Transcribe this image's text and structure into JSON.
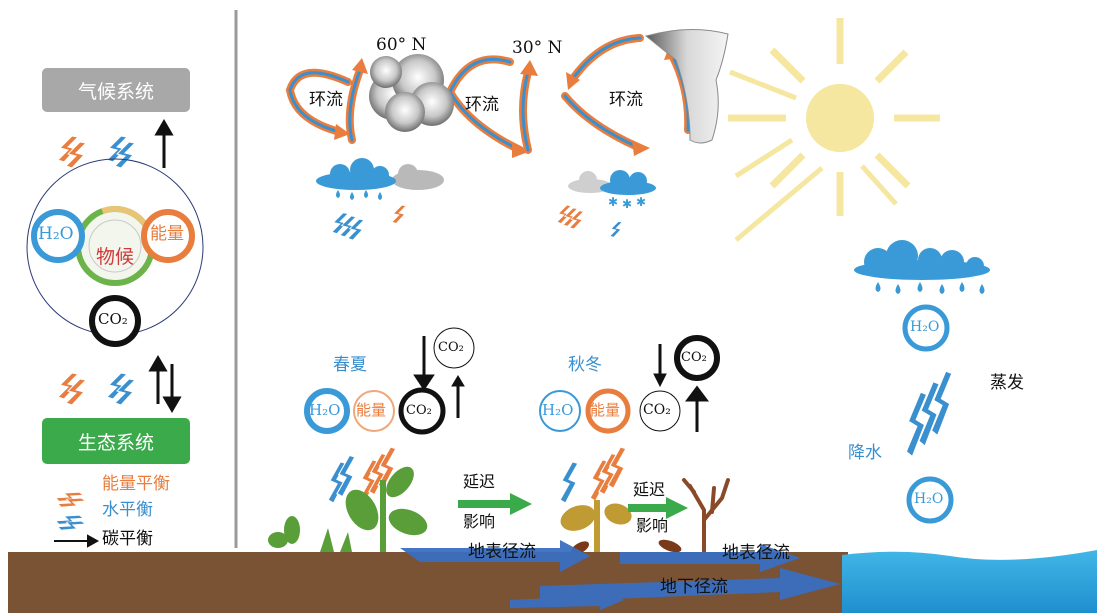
{
  "legend_panel": {
    "climate_system": "气候系统",
    "ecosystem": "生态系统",
    "center_label": "物候",
    "h2o": "H₂O",
    "energy": "能量",
    "co2": "CO₂",
    "legend_items": [
      {
        "label": "能量平衡",
        "color": "#e87d3e"
      },
      {
        "label": "水平衡",
        "color": "#3a8fcf"
      },
      {
        "label": "碳平衡",
        "color": "#111111"
      }
    ]
  },
  "atmosphere": {
    "lat_60": "60° N",
    "lat_30": "30° N",
    "circulation_labels": [
      "环流",
      "环流",
      "环流"
    ]
  },
  "seasons": {
    "spring_summer": "春夏",
    "autumn_winter": "秋冬",
    "h2o": "H₂O",
    "energy": "能量",
    "co2": "CO₂",
    "delay_lines": [
      "延迟",
      "影响"
    ]
  },
  "water_cycle": {
    "evaporation": "蒸发",
    "precipitation": "降水",
    "h2o": "H₂O"
  },
  "ground": {
    "surface_runoff": "地表径流",
    "subsurface_runoff": "地下径流"
  },
  "colors": {
    "energy": "#e87d3e",
    "water": "#3a8fcf",
    "carbon": "#111111",
    "eco_green": "#3aaa4a",
    "climate_gray": "#a8a8a8",
    "soil": "#7a5335",
    "sun": "#f5e6a0"
  }
}
